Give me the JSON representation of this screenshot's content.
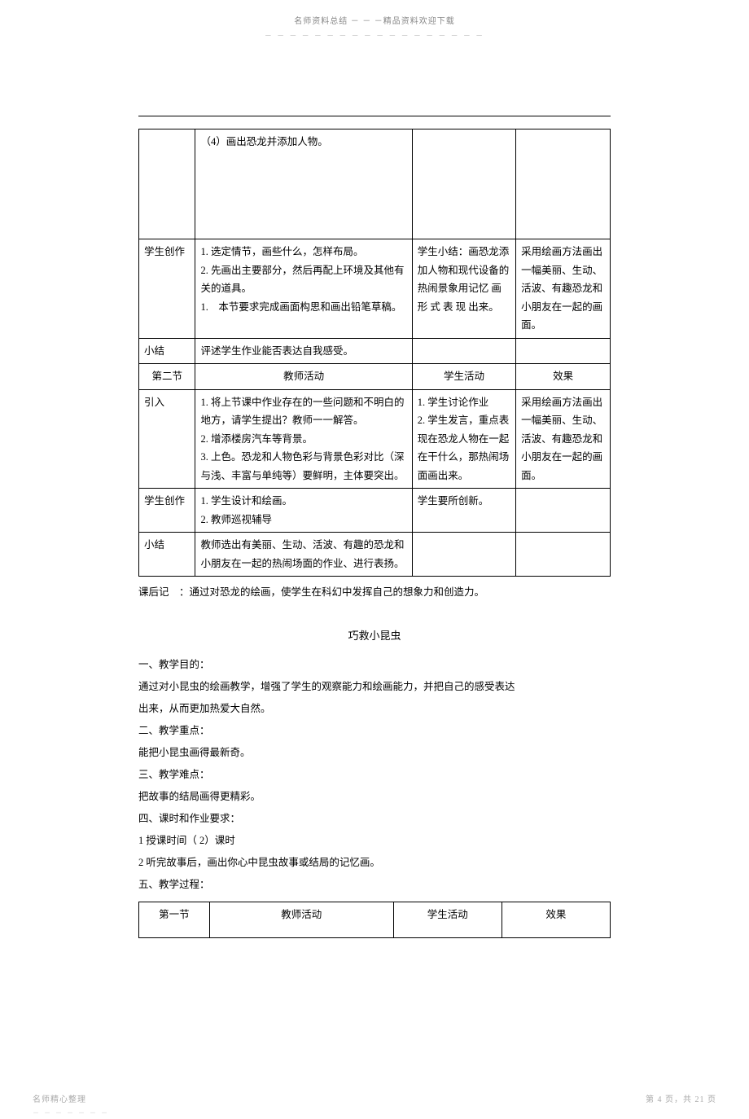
{
  "header": {
    "line1": "名师资料总结 － － －精品资料欢迎下载",
    "line2": "－ － － － － － － － － － － － － － － － － －"
  },
  "table1": {
    "rows": [
      {
        "c1": "",
        "c2": "（4）画出恐龙并添加人物。",
        "c3": "",
        "c4": "",
        "tall": true
      },
      {
        "c1": "学生创作",
        "c2": "1. 选定情节，画些什么，怎样布局。\n2. 先画出主要部分，然后再配上环境及其他有关的道具。\n1.　本节要求完成画面构思和画出铅笔草稿。",
        "c3": "学生小结：画恐龙添加人物和现代设备的热闹景象用记忆 画 形 式 表 现 出来。",
        "c4": "采用绘画方法画出一幅美丽、生动、活波、有趣恐龙和小朋友在一起的画面。"
      },
      {
        "c1": "小结",
        "c2": "评述学生作业能否表达自我感受。",
        "c3": "",
        "c4": ""
      },
      {
        "c1": "第二节",
        "c2": "教师活动",
        "c3": "学生活动",
        "c4": "效果",
        "header": true
      },
      {
        "c1": "引入",
        "c2": "1. 将上节课中作业存在的一些问题和不明白的地方，请学生提出？教师一一解答。\n2. 增添楼房汽车等背景。\n3. 上色。恐龙和人物色彩与背景色彩对比（深与浅、丰富与单纯等）要鲜明，主体要突出。",
        "c3": "1. 学生讨论作业\n2. 学生发言，重点表现在恐龙人物在一起在干什么，那热闹场面画出来。",
        "c4": "采用绘画方法画出一幅美丽、生动、活波、有趣恐龙和小朋友在一起的画面。"
      },
      {
        "c1": "学生创作",
        "c2": "1. 学生设计和绘画。\n2. 教师巡视辅导",
        "c3": "学生要所创新。",
        "c4": ""
      },
      {
        "c1": "小结",
        "c2": "教师选出有美丽、生动、活波、有趣的恐龙和小朋友在一起的热闹场面的作业、进行表扬。",
        "c3": "",
        "c4": ""
      }
    ]
  },
  "afterTable": "课后记　：通过对恐龙的绘画，使学生在科幻中发挥自己的想象力和创造力。",
  "sectionTitle": "巧救小昆虫",
  "bodyText": {
    "p1": "一、教学目的：",
    "p2": "通过对小昆虫的绘画教学，增强了学生的观察能力和绘画能力，并把自己的感受表达",
    "p3": "出来，从而更加热爱大自然。",
    "p4": "二、教学重点：",
    "p5": "能把小昆虫画得最新奇。",
    "p6": "三、教学难点：",
    "p7": "把故事的结局画得更精彩。",
    "p8": "四、课时和作业要求：",
    "p9": "1 授课时间（ 2）课时",
    "p10": "2 听完故事后，画出你心中昆虫故事或结局的记忆画。",
    "p11": "五、教学过程："
  },
  "table2": {
    "headers": [
      "第一节",
      "教师活动",
      "学生活动",
      "效果"
    ]
  },
  "footer": {
    "left": "名师精心整理",
    "left_sub": "－ － － － － － －",
    "right": "第 4 页，共 21 页",
    "right_sub": "－ － － － － － － － － －"
  }
}
